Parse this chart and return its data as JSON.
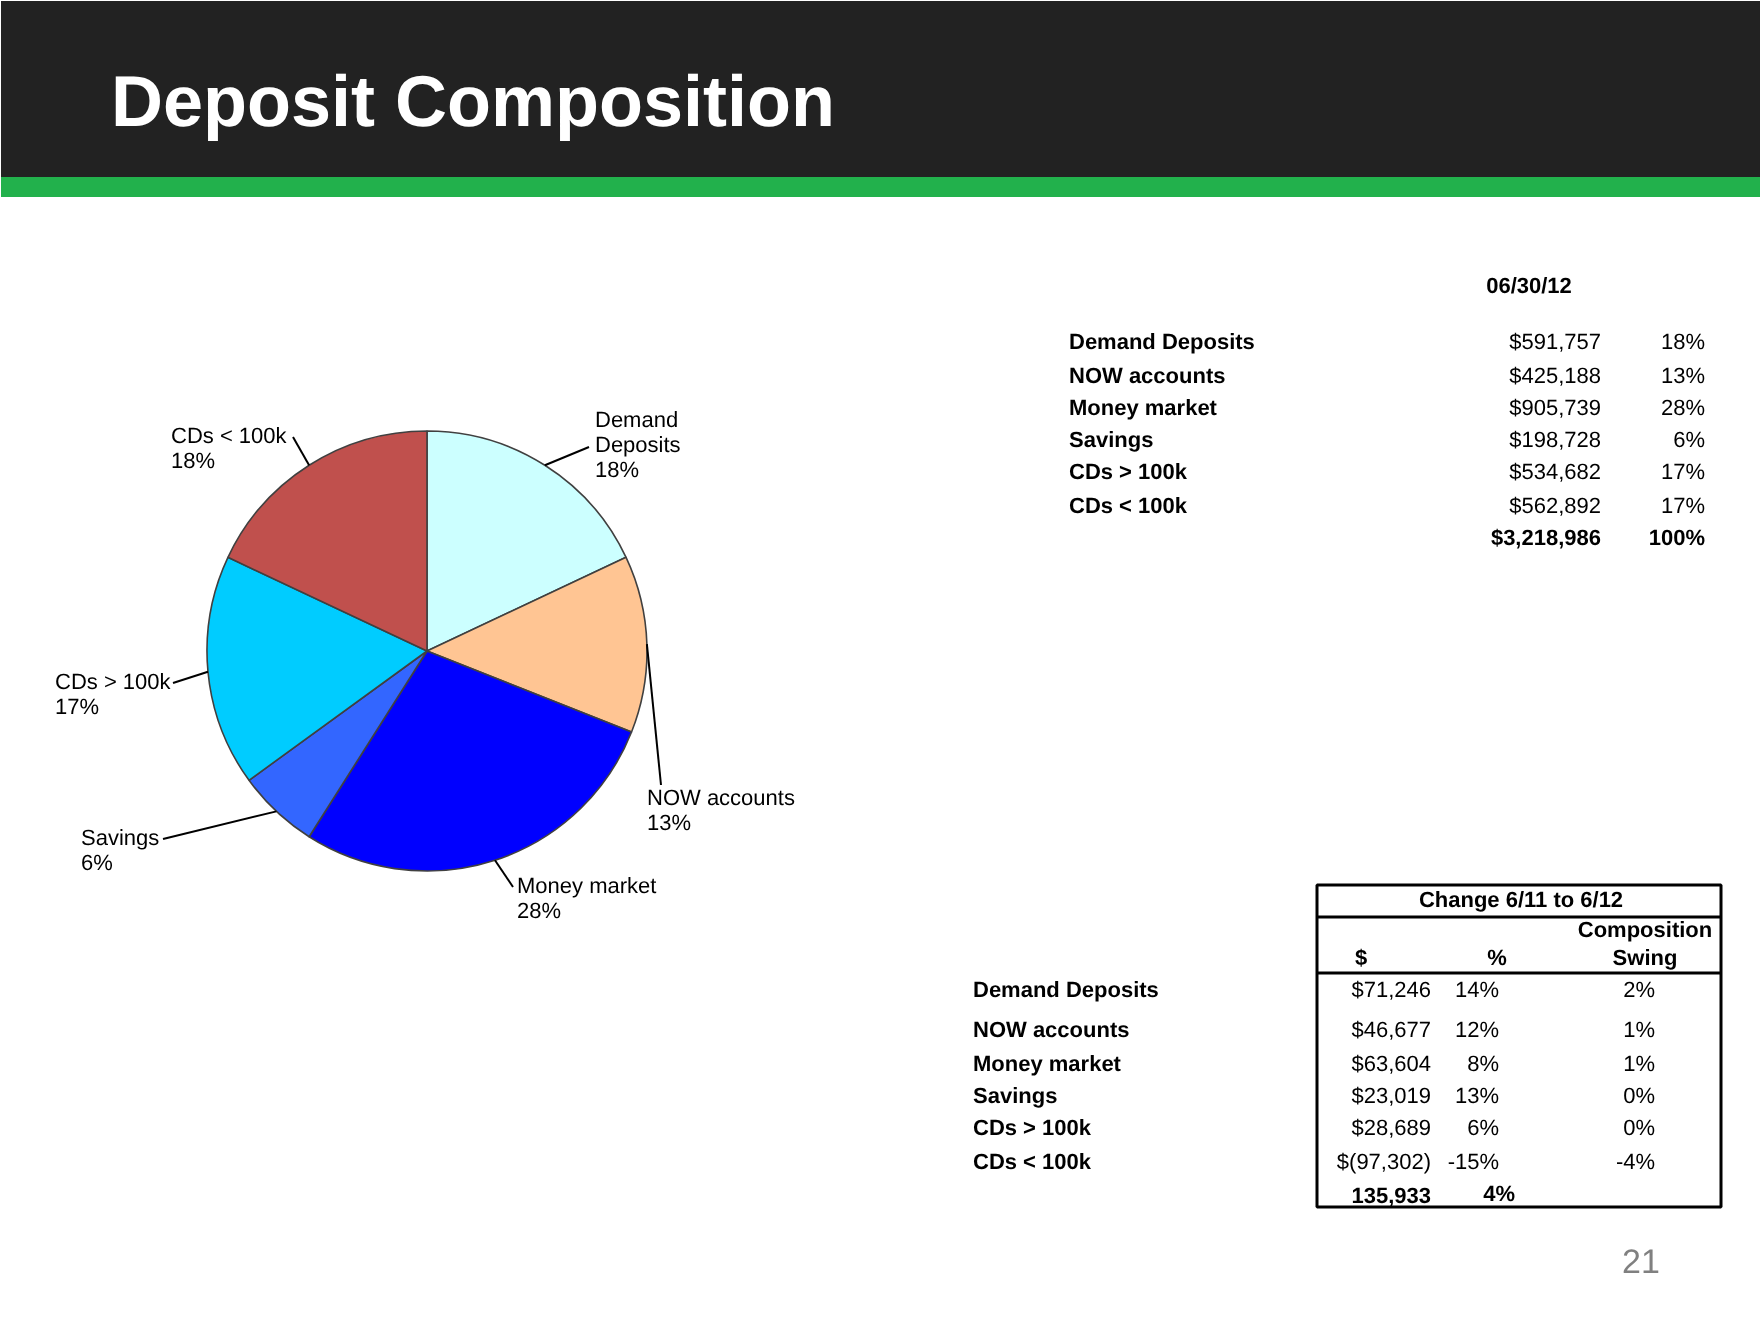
{
  "chart_data": [
    {
      "type": "pie",
      "title": "Deposit Composition",
      "categories": [
        "Demand Deposits",
        "NOW accounts",
        "Money market",
        "Savings",
        "CDs > 100k",
        "CDs  < 100k"
      ],
      "values": [
        18,
        13,
        28,
        6,
        17,
        18
      ],
      "colors": [
        "#ccffff",
        "#ffc593",
        "#0000ff",
        "#3366ff",
        "#00ccff",
        "#c0504d"
      ],
      "value_labels": [
        "18%",
        "13%",
        "28%",
        "6%",
        "17%",
        "18%"
      ]
    },
    {
      "type": "other",
      "title": "06/30/12",
      "categories": [
        "Demand Deposits",
        "NOW accounts",
        "Money market",
        "Savings",
        "CDs > 100k",
        "CDs < 100k"
      ],
      "series": [
        {
          "values": [
            591757,
            425188,
            905739,
            198728,
            534682,
            562892
          ],
          "value_labels": [
            "$591,757",
            "$425,188",
            "$905,739",
            "$198,728",
            "$534,682",
            "$562,892"
          ]
        },
        {
          "values": [
            18,
            13,
            28,
            6,
            17,
            17
          ],
          "value_labels": [
            "18%",
            "13%",
            "28%",
            "6%",
            "17%",
            "17%"
          ]
        }
      ],
      "annotations": [
        "$3,218,986",
        "100%"
      ]
    },
    {
      "type": "other",
      "title": "Change 6/11 to 6/12",
      "categories": [
        "Demand Deposits",
        "NOW accounts",
        "Money market",
        "Savings",
        "CDs > 100k",
        "CDs < 100k"
      ],
      "series": [
        {
          "name": "$",
          "values": [
            71246,
            46677,
            63604,
            23019,
            28689,
            -97302
          ],
          "value_labels": [
            "$71,246",
            "$46,677",
            "$63,604",
            "$23,019",
            "$28,689",
            "$(97,302)"
          ]
        },
        {
          "name": "%",
          "values": [
            14,
            12,
            8,
            13,
            6,
            -15
          ],
          "value_labels": [
            "14%",
            "12%",
            "8%",
            "13%",
            "6%",
            "-15%"
          ]
        },
        {
          "name": "Composition Swing",
          "values": [
            2,
            1,
            1,
            0,
            0,
            -4
          ],
          "value_labels": [
            "2%",
            "1%",
            "1%",
            "0%",
            "0%",
            "-4%"
          ]
        }
      ],
      "annotations": [
        "135,933",
        "4%",
        "21"
      ]
    }
  ]
}
